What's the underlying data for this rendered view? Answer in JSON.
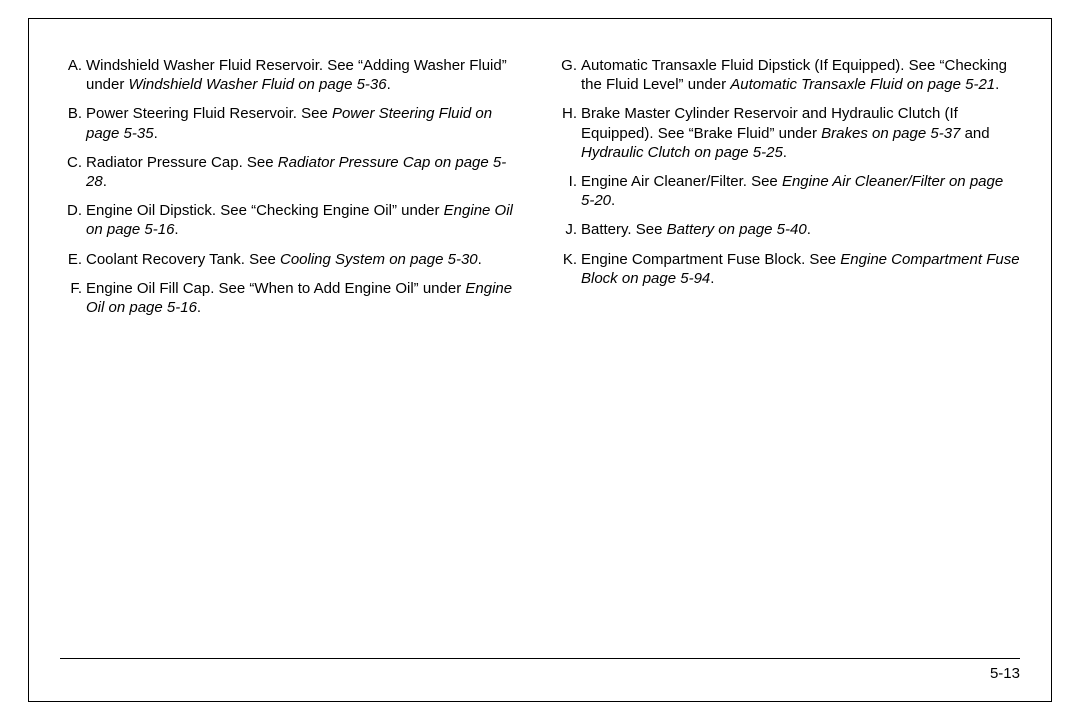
{
  "page": {
    "number": "5-13",
    "font_size_pt": 15,
    "text_color": "#000000",
    "background_color": "#ffffff",
    "border_color": "#000000"
  },
  "left": [
    {
      "letter": "A.",
      "segments": [
        {
          "t": "Windshield Washer Fluid Reservoir. See “Adding Washer Fluid” under ",
          "i": false
        },
        {
          "t": "Windshield Washer Fluid on page 5-36",
          "i": true
        },
        {
          "t": ".",
          "i": false
        }
      ]
    },
    {
      "letter": "B.",
      "segments": [
        {
          "t": "Power Steering Fluid Reservoir. See ",
          "i": false
        },
        {
          "t": "Power Steering Fluid on page 5-35",
          "i": true
        },
        {
          "t": ".",
          "i": false
        }
      ]
    },
    {
      "letter": "C.",
      "segments": [
        {
          "t": "Radiator Pressure Cap. See ",
          "i": false
        },
        {
          "t": "Radiator Pressure Cap on page 5-28",
          "i": true
        },
        {
          "t": ".",
          "i": false
        }
      ]
    },
    {
      "letter": "D.",
      "segments": [
        {
          "t": "Engine Oil Dipstick. See “Checking Engine Oil” under ",
          "i": false
        },
        {
          "t": "Engine Oil on page 5-16",
          "i": true
        },
        {
          "t": ".",
          "i": false
        }
      ]
    },
    {
      "letter": "E.",
      "segments": [
        {
          "t": "Coolant Recovery Tank. See ",
          "i": false
        },
        {
          "t": "Cooling System on page 5-30",
          "i": true
        },
        {
          "t": ".",
          "i": false
        }
      ]
    },
    {
      "letter": "F.",
      "segments": [
        {
          "t": "Engine Oil Fill Cap. See “When to Add Engine Oil” under ",
          "i": false
        },
        {
          "t": "Engine Oil on page 5-16",
          "i": true
        },
        {
          "t": ".",
          "i": false
        }
      ]
    }
  ],
  "right": [
    {
      "letter": "G.",
      "segments": [
        {
          "t": "Automatic Transaxle Fluid Dipstick (If Equipped). See “Checking the Fluid Level” under ",
          "i": false
        },
        {
          "t": "Automatic Transaxle Fluid on page 5-21",
          "i": true
        },
        {
          "t": ".",
          "i": false
        }
      ]
    },
    {
      "letter": "H.",
      "segments": [
        {
          "t": "Brake Master Cylinder Reservoir and Hydraulic Clutch (If Equipped). See “Brake Fluid” under ",
          "i": false
        },
        {
          "t": "Brakes on page 5-37",
          "i": true
        },
        {
          "t": " and ",
          "i": false
        },
        {
          "t": "Hydraulic Clutch on page 5-25",
          "i": true
        },
        {
          "t": ".",
          "i": false
        }
      ]
    },
    {
      "letter": "I.",
      "segments": [
        {
          "t": "Engine Air Cleaner/Filter. See ",
          "i": false
        },
        {
          "t": "Engine Air Cleaner/Filter on page 5-20",
          "i": true
        },
        {
          "t": ".",
          "i": false
        }
      ]
    },
    {
      "letter": "J.",
      "segments": [
        {
          "t": "Battery. See ",
          "i": false
        },
        {
          "t": "Battery on page 5-40",
          "i": true
        },
        {
          "t": ".",
          "i": false
        }
      ]
    },
    {
      "letter": "K.",
      "segments": [
        {
          "t": "Engine Compartment Fuse Block. See ",
          "i": false
        },
        {
          "t": "Engine Compartment Fuse Block on page 5-94",
          "i": true
        },
        {
          "t": ".",
          "i": false
        }
      ]
    }
  ]
}
